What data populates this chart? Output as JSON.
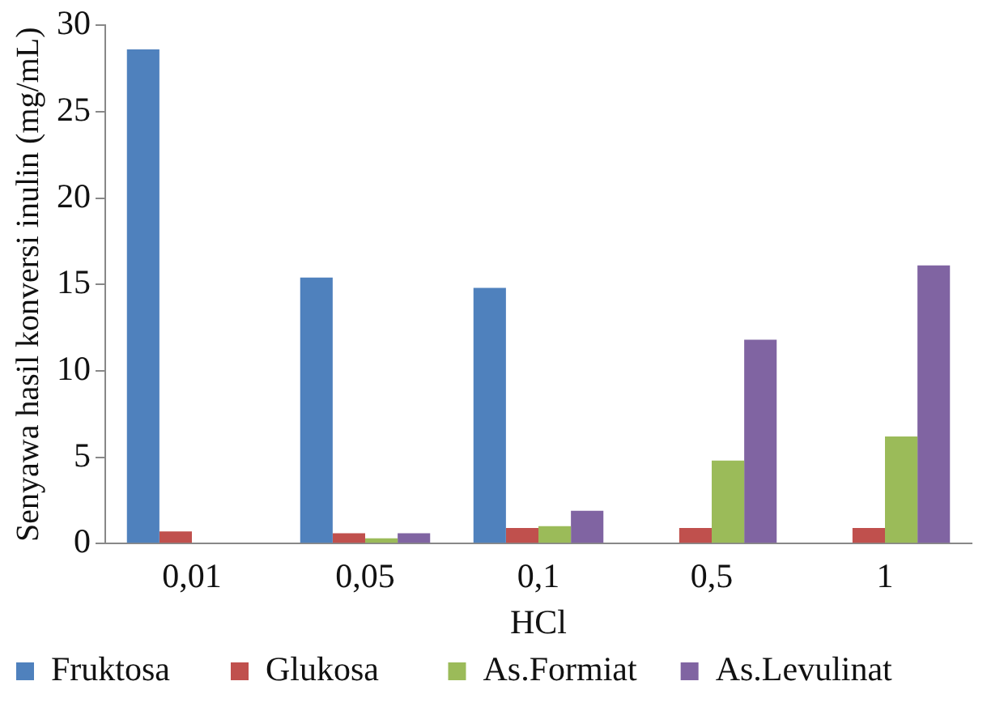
{
  "chart_data": {
    "type": "bar",
    "xlabel": "HCl",
    "ylabel": "Senyawa hasil konversi inulin (mg/mL)",
    "categories": [
      "0,01",
      "0,05",
      "0,1",
      "0,5",
      "1"
    ],
    "series": [
      {
        "name": "Fruktosa",
        "color": "#4f81bd",
        "values": [
          28.6,
          15.4,
          14.8,
          null,
          null
        ]
      },
      {
        "name": "Glukosa",
        "color": "#c0504d",
        "values": [
          0.7,
          0.6,
          0.9,
          0.9,
          0.9
        ]
      },
      {
        "name": "As.Formiat",
        "color": "#9bbb59",
        "values": [
          0,
          0.3,
          1.0,
          4.8,
          6.2
        ]
      },
      {
        "name": "As.Levulinat",
        "color": "#8064a2",
        "values": [
          0,
          0.6,
          1.9,
          11.8,
          16.1
        ]
      }
    ],
    "ylim": [
      0,
      30
    ],
    "yticks": [
      0,
      5,
      10,
      15,
      20,
      25,
      30
    ],
    "grid": false,
    "legend": "bottom"
  }
}
